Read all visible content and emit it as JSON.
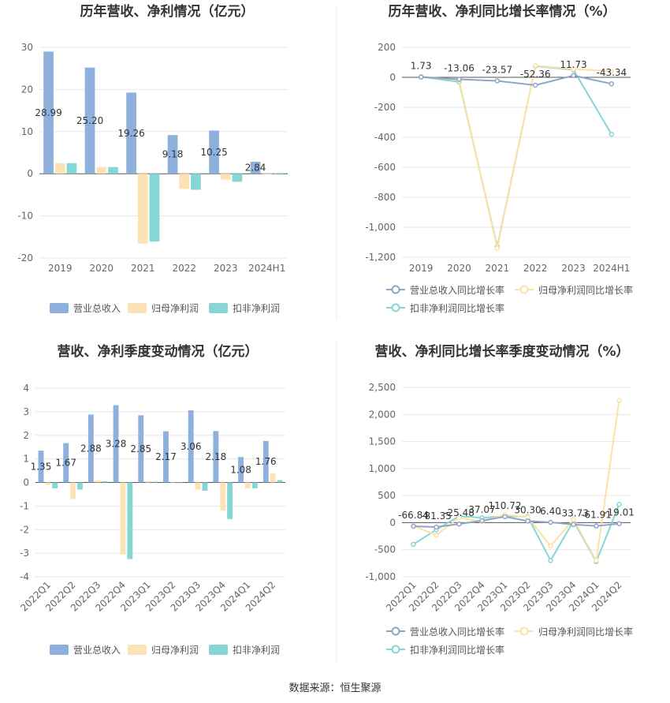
{
  "page": {
    "source_note": "数据来源：恒生聚源",
    "colors": {
      "revenue": "#8eb0dd",
      "parent_profit": "#fbe3b5",
      "deducted_profit": "#86d6d6",
      "rev_line": "#8ea5c9",
      "parent_line": "#fbe3a5",
      "deducted_line": "#86d6d6"
    }
  },
  "chart_data": [
    {
      "id": "annual-amounts",
      "type": "bar",
      "title": "历年营收、净利情况（亿元）",
      "categories": [
        "2019",
        "2020",
        "2021",
        "2022",
        "2023",
        "2024H1"
      ],
      "ylim": [
        -20,
        30
      ],
      "yticks": [
        -20,
        -10,
        0,
        10,
        20,
        30
      ],
      "series": [
        {
          "name": "营业总收入",
          "values": [
            28.99,
            25.2,
            19.26,
            9.18,
            10.25,
            2.84
          ],
          "labels": [
            "28.99",
            "25.20",
            "19.26",
            "9.18",
            "10.25",
            "2.84"
          ]
        },
        {
          "name": "归母净利润",
          "values": [
            2.5,
            1.6,
            -16.6,
            -3.6,
            -1.4,
            -0.1
          ]
        },
        {
          "name": "扣非净利润",
          "values": [
            2.5,
            1.6,
            -16.1,
            -3.8,
            -1.9,
            -0.2
          ]
        }
      ]
    },
    {
      "id": "annual-growth",
      "type": "line",
      "title": "历年营收、净利同比增长率情况（%）",
      "categories": [
        "2019",
        "2020",
        "2021",
        "2022",
        "2023",
        "2024H1"
      ],
      "ylim": [
        -1200,
        200
      ],
      "yticks": [
        -1200,
        -1000,
        -800,
        -600,
        -400,
        -200,
        0,
        200
      ],
      "series": [
        {
          "name": "营业总收入同比增长率",
          "values": [
            1.73,
            -13.06,
            -23.57,
            -52.36,
            11.73,
            -43.34
          ],
          "labels": [
            "1.73",
            "-13.06",
            "-23.57",
            "-52.36",
            "11.73",
            "-43.34"
          ]
        },
        {
          "name": "归母净利润同比增长率",
          "values": [
            5,
            -18,
            -1140,
            78,
            55,
            40
          ]
        },
        {
          "name": "扣非净利润同比增长率",
          "values": [
            3,
            -30,
            -1130,
            75,
            50,
            -380
          ]
        }
      ]
    },
    {
      "id": "quarterly-amounts",
      "type": "bar",
      "title": "营收、净利季度变动情况（亿元）",
      "categories": [
        "2022Q1",
        "2022Q2",
        "2022Q3",
        "2022Q4",
        "2023Q1",
        "2023Q2",
        "2023Q3",
        "2023Q4",
        "2024Q1",
        "2024Q2"
      ],
      "ylim": [
        -4,
        4
      ],
      "yticks": [
        -4,
        -3,
        -2,
        -1,
        0,
        1,
        2,
        3,
        4
      ],
      "series": [
        {
          "name": "营业总收入",
          "values": [
            1.35,
            1.67,
            2.88,
            3.28,
            2.85,
            2.17,
            3.06,
            2.18,
            1.08,
            1.76
          ],
          "labels": [
            "1.35",
            "1.67",
            "2.88",
            "3.28",
            "2.85",
            "2.17",
            "3.06",
            "2.18",
            "1.08",
            "1.76"
          ]
        },
        {
          "name": "归母净利润",
          "values": [
            -0.1,
            -0.7,
            0.08,
            -3.05,
            0.05,
            -0.02,
            -0.3,
            -1.2,
            -0.25,
            0.38
          ]
        },
        {
          "name": "扣非净利润",
          "values": [
            -0.25,
            -0.3,
            0.05,
            -3.25,
            0.03,
            -0.02,
            -0.35,
            -1.55,
            -0.25,
            0.1
          ]
        }
      ]
    },
    {
      "id": "quarterly-growth",
      "type": "line",
      "title": "营收、净利同比增长率季度变动情况（%）",
      "categories": [
        "2022Q1",
        "2022Q2",
        "2022Q3",
        "2022Q4",
        "2023Q1",
        "2023Q2",
        "2023Q3",
        "2023Q4",
        "2024Q1",
        "2024Q2"
      ],
      "ylim": [
        -1000,
        2500
      ],
      "yticks": [
        -1000,
        -500,
        0,
        500,
        1000,
        1500,
        2000,
        2500
      ],
      "series": [
        {
          "name": "营业总收入同比增长率",
          "values": [
            -66.84,
            -81.35,
            -25.48,
            37.07,
            110.72,
            30.3,
            6.4,
            -33.73,
            -61.91,
            -19.01
          ],
          "labels": [
            "-66.84",
            "-81.35",
            "-25.48",
            "37.07",
            "110.72",
            "30.30",
            "6.40",
            "-33.73",
            "-61.91",
            "-19.01"
          ]
        },
        {
          "name": "归母净利润同比增长率",
          "values": [
            -60,
            -230,
            90,
            20,
            150,
            100,
            -430,
            60,
            -700,
            2260
          ]
        },
        {
          "name": "扣非净利润同比增长率",
          "values": [
            -400,
            -130,
            120,
            90,
            120,
            110,
            -700,
            30,
            -720,
            340
          ]
        }
      ]
    }
  ]
}
